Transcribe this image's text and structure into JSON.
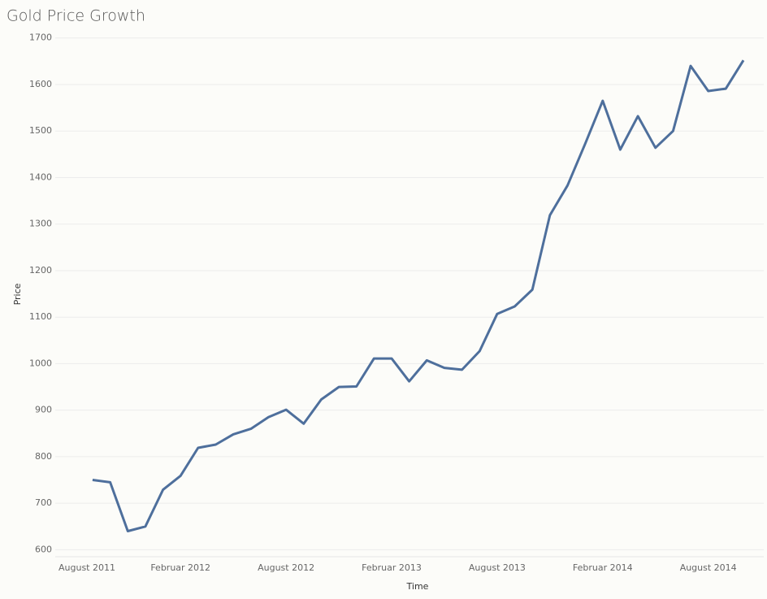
{
  "chart_data": {
    "type": "line",
    "title": "Gold Price Growth",
    "x_label": "Time",
    "y_label": "Price",
    "categories": [
      "August 2011",
      null,
      null,
      null,
      null,
      null,
      "Februar 2012",
      null,
      null,
      null,
      null,
      null,
      "August 2012",
      null,
      null,
      null,
      null,
      null,
      "Februar 2013",
      null,
      null,
      null,
      null,
      null,
      "August 2013",
      null,
      null,
      null,
      null,
      null,
      "Februar 2014",
      null,
      null,
      null,
      null,
      null,
      "August 2014",
      null,
      null
    ],
    "series": [
      {
        "name": "Price",
        "color": "#4e6f9c",
        "values": [
          null,
          750,
          745,
          640,
          650,
          729,
          759,
          819,
          826,
          848,
          860,
          885,
          901,
          871,
          923,
          950,
          951,
          1011,
          1011,
          962,
          1007,
          991,
          987,
          1027,
          1107,
          1123,
          1159,
          1319,
          1383,
          1472,
          1565,
          1460,
          1532,
          1464,
          1500,
          1640,
          1586,
          1591,
          1652
        ]
      }
    ],
    "ylim": [
      585,
      1710
    ],
    "yticks": [
      600,
      700,
      800,
      900,
      1000,
      1100,
      1200,
      1300,
      1400,
      1500,
      1600,
      1700
    ],
    "grid": true
  }
}
